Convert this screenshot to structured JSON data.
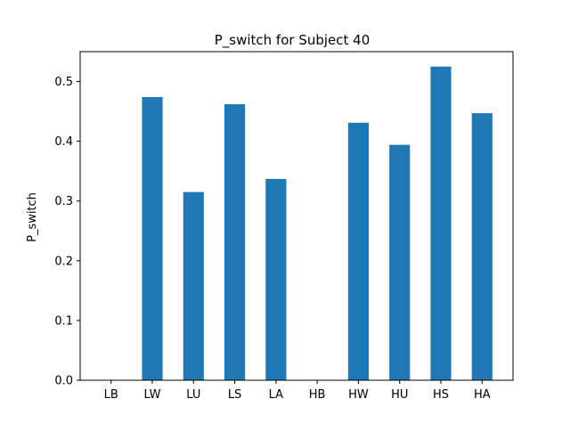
{
  "chart_data": {
    "type": "bar",
    "title": "P_switch for Subject 40",
    "xlabel": "",
    "ylabel": "P_switch",
    "categories": [
      "LB",
      "LW",
      "LU",
      "LS",
      "LA",
      "HB",
      "HW",
      "HU",
      "HS",
      "HA"
    ],
    "values": [
      0,
      0.474,
      0.315,
      0.462,
      0.337,
      0,
      0.431,
      0.394,
      0.525,
      0.447
    ],
    "ylim": [
      0,
      0.55
    ],
    "yticks": [
      0.0,
      0.1,
      0.2,
      0.3,
      0.4,
      0.5
    ],
    "ytick_labels": [
      "0.0",
      "0.1",
      "0.2",
      "0.3",
      "0.4",
      "0.5"
    ],
    "grid": false,
    "bar_color": "#1f77b4"
  }
}
